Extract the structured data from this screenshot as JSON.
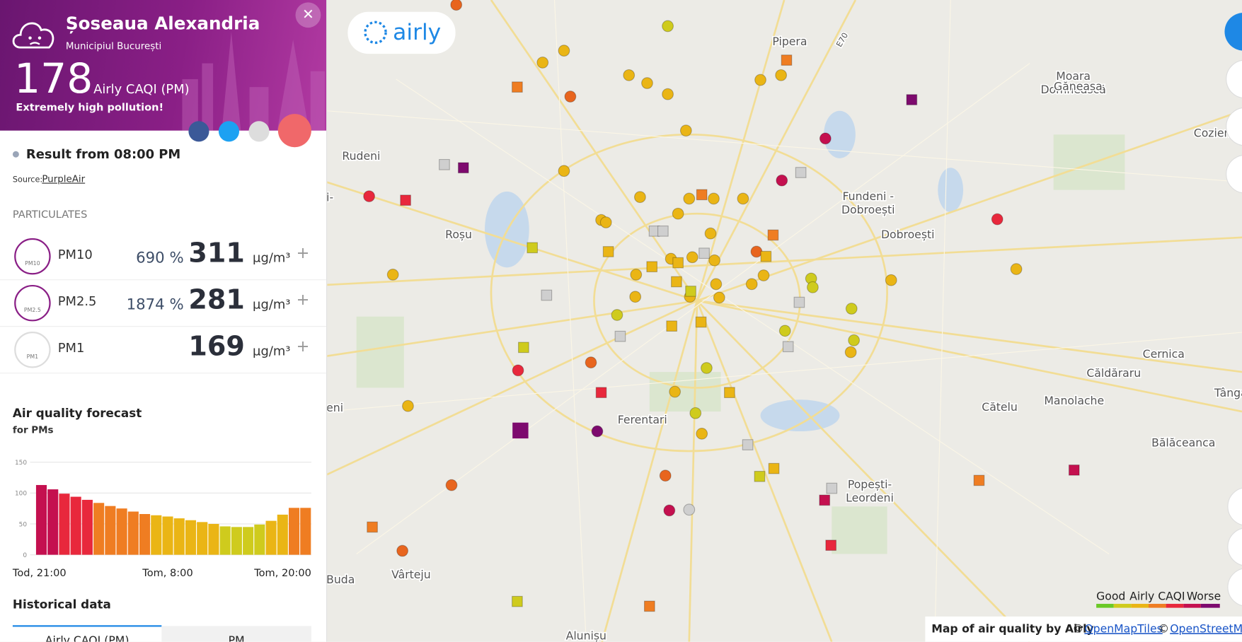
{
  "header": {
    "title": "Șoseaua Alexandria",
    "subtitle": "Municipiul București",
    "index": 178,
    "index_label": "Airly CAQI (PM)",
    "status": "Extremely high pollution!"
  },
  "result": "Result from 08:00 PM",
  "source_label": "Source:",
  "source": "PurpleAir",
  "particulates": {
    "title": "PARTICULATES",
    "rows": [
      {
        "name": "PM10",
        "percent": "690 %",
        "value": 311,
        "unit": "µg/m³"
      },
      {
        "name": "PM2.5",
        "percent": "1874 %",
        "value": 281,
        "unit": "µg/m³"
      },
      {
        "name": "PM1",
        "value": 169,
        "unit": "µg/m³"
      }
    ]
  },
  "forecast": {
    "title": "Air quality forecast",
    "subtitle": "for PMs"
  },
  "chart_data": {
    "type": "bar",
    "categories": [
      "Tod, 21:00",
      null,
      null,
      null,
      null,
      null,
      null,
      null,
      null,
      null,
      null,
      "Tom, 8:00",
      null,
      null,
      null,
      null,
      null,
      null,
      null,
      null,
      null,
      null,
      null,
      "Tom, 20:00"
    ],
    "values": [
      113,
      106,
      99,
      94,
      89,
      84,
      79,
      75,
      70,
      66,
      64,
      62,
      59,
      56,
      53,
      50,
      46,
      45,
      45,
      49,
      55,
      65,
      76,
      76
    ],
    "colors": [
      "#c4104f",
      "#c4104f",
      "#e8283c",
      "#e8283c",
      "#e8283c",
      "#ef7d22",
      "#ef7d22",
      "#ef7d22",
      "#ef7d22",
      "#ef7d22",
      "#eab515",
      "#eab515",
      "#eab515",
      "#eab515",
      "#eab515",
      "#eab515",
      "#cfcb1d",
      "#cfcb1d",
      "#cfcb1d",
      "#cfcb1d",
      "#eab515",
      "#eab515",
      "#ef7d22",
      "#ef7d22"
    ],
    "ylim": [
      0,
      150
    ],
    "yticks": [
      0,
      50,
      100,
      150
    ],
    "grid": true
  },
  "history": {
    "title": "Historical data",
    "tabs": [
      "Airly CAQI (PM)",
      "PM"
    ]
  },
  "map": {
    "logo": "airly",
    "labels": [
      [
        "Pipera"
      ],
      [
        "Moara",
        "Domnească"
      ],
      [
        "Găneasa"
      ],
      [
        "Cozien"
      ],
      [
        "Rudeni"
      ],
      [
        "Fundeni -",
        "Dobroești"
      ],
      [
        "Dobroești"
      ],
      [
        "Roșu"
      ],
      [
        "Cernica"
      ],
      [
        "Căldăraru"
      ],
      [
        "Tânga"
      ],
      [
        "Cătelu"
      ],
      [
        "Manolache"
      ],
      [
        "Bălăceanca"
      ],
      [
        "Ferentari"
      ],
      [
        "Popești-",
        "Leordeni"
      ],
      [
        "Vârteju"
      ],
      [
        "Buda"
      ],
      [
        "Alunișu"
      ],
      [
        "eni"
      ],
      [
        "i-"
      ],
      [
        "E70"
      ]
    ],
    "legend": {
      "good": "Good",
      "title": "Airly CAQI",
      "worse": "Worse"
    },
    "attribution": {
      "text": "Map of air quality by Airly",
      "copy1": "©",
      "link1": "OpenMapTiles",
      "copy2": "©",
      "link2": "OpenStreetMap"
    }
  }
}
